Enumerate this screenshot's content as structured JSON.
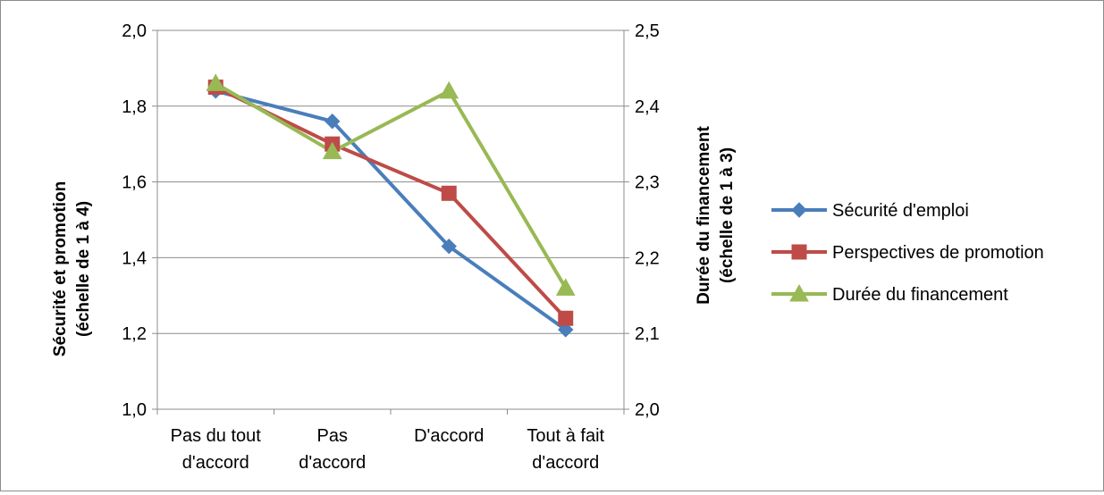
{
  "chart_data": {
    "type": "line",
    "categories": [
      [
        "Pas du tout",
        "d'accord"
      ],
      [
        "Pas",
        "d'accord"
      ],
      [
        "D'accord"
      ],
      [
        "Tout à fait",
        "d'accord"
      ]
    ],
    "y_left": {
      "title_lines": [
        "Sécurité et promotion",
        "(échelle de 1 à 4)"
      ],
      "range": [
        1.0,
        2.0
      ],
      "ticks": [
        "1,0",
        "1,2",
        "1,4",
        "1,6",
        "1,8",
        "2,0"
      ],
      "tick_values": [
        1.0,
        1.2,
        1.4,
        1.6,
        1.8,
        2.0
      ]
    },
    "y_right": {
      "title_lines": [
        "Durée du financement",
        "(échelle de 1 à 3)"
      ],
      "range": [
        2.0,
        2.5
      ],
      "ticks": [
        "2,0",
        "2,1",
        "2,2",
        "2,3",
        "2,4",
        "2,5"
      ],
      "tick_values": [
        2.0,
        2.1,
        2.2,
        2.3,
        2.4,
        2.5
      ]
    },
    "grid": true,
    "legend_position": "right",
    "series": [
      {
        "name": "Sécurité d'emploi",
        "axis": "left",
        "color": "#4a7ebb",
        "marker": "diamond",
        "values": [
          1.84,
          1.76,
          1.43,
          1.21
        ]
      },
      {
        "name": "Perspectives de promotion",
        "axis": "left",
        "color": "#be4b48",
        "marker": "square",
        "values": [
          1.85,
          1.7,
          1.57,
          1.24
        ]
      },
      {
        "name": "Durée du financement",
        "axis": "right",
        "color": "#98b954",
        "marker": "triangle",
        "values": [
          2.43,
          2.34,
          2.42,
          2.16
        ]
      }
    ]
  }
}
